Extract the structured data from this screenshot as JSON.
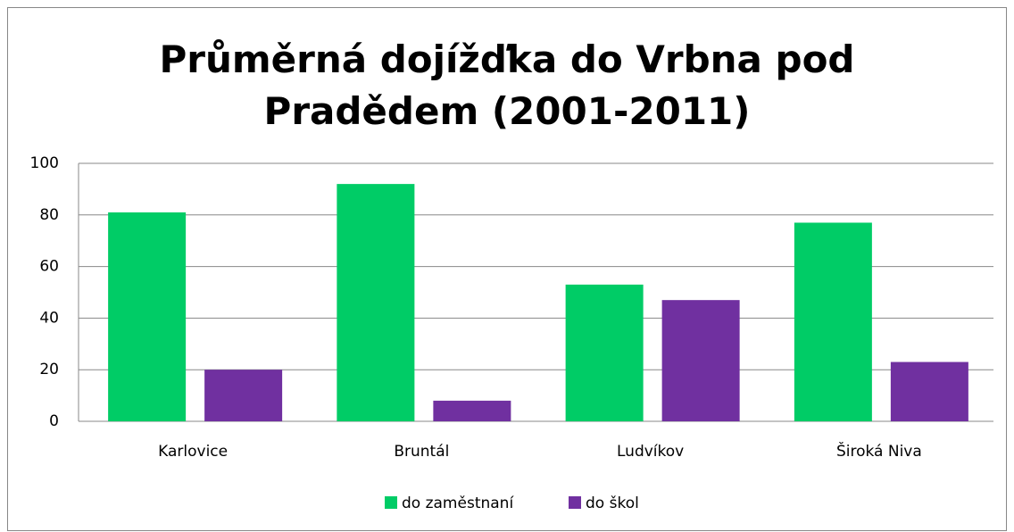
{
  "chart_data": {
    "type": "bar",
    "title": "Průměrná dojížďka do Vrbna pod Pradědem (2001-2011)",
    "categories": [
      "Karlovice",
      "Bruntál",
      "Ludvíkov",
      "Široká Niva"
    ],
    "series": [
      {
        "name": "do zaměstnaní",
        "color": "#00cc66",
        "values": [
          81,
          92,
          53,
          77
        ]
      },
      {
        "name": "do škol",
        "color": "#7030a0",
        "values": [
          20,
          8,
          47,
          23
        ]
      }
    ],
    "ylim": [
      0,
      100
    ],
    "yticks": [
      0,
      20,
      40,
      60,
      80,
      100
    ],
    "grid": true,
    "legend": "bottom"
  }
}
